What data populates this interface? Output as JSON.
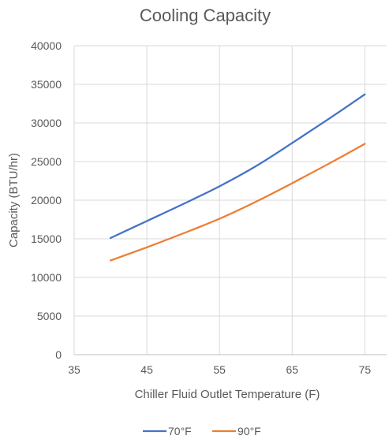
{
  "chart_data": {
    "type": "line",
    "title": "Cooling Capacity",
    "xlabel": "Chiller Fluid Outlet Temperature (F)",
    "ylabel": "Capacity (BTU/hr)",
    "xlim": [
      35,
      78
    ],
    "ylim": [
      0,
      40000
    ],
    "xticks": [
      35,
      45,
      55,
      65,
      75
    ],
    "yticks": [
      0,
      5000,
      10000,
      15000,
      20000,
      25000,
      30000,
      35000,
      40000
    ],
    "grid": true,
    "legend_position": "bottom",
    "x": [
      40,
      45,
      50,
      55,
      60,
      65,
      70,
      75
    ],
    "series": [
      {
        "name": "70°F",
        "color": "#4472c4",
        "values": [
          15100,
          17300,
          19500,
          21800,
          24400,
          27400,
          30500,
          33700
        ]
      },
      {
        "name": "90°F",
        "color": "#ed7d31",
        "values": [
          12200,
          13900,
          15700,
          17600,
          19800,
          22200,
          24700,
          27300
        ]
      }
    ]
  }
}
